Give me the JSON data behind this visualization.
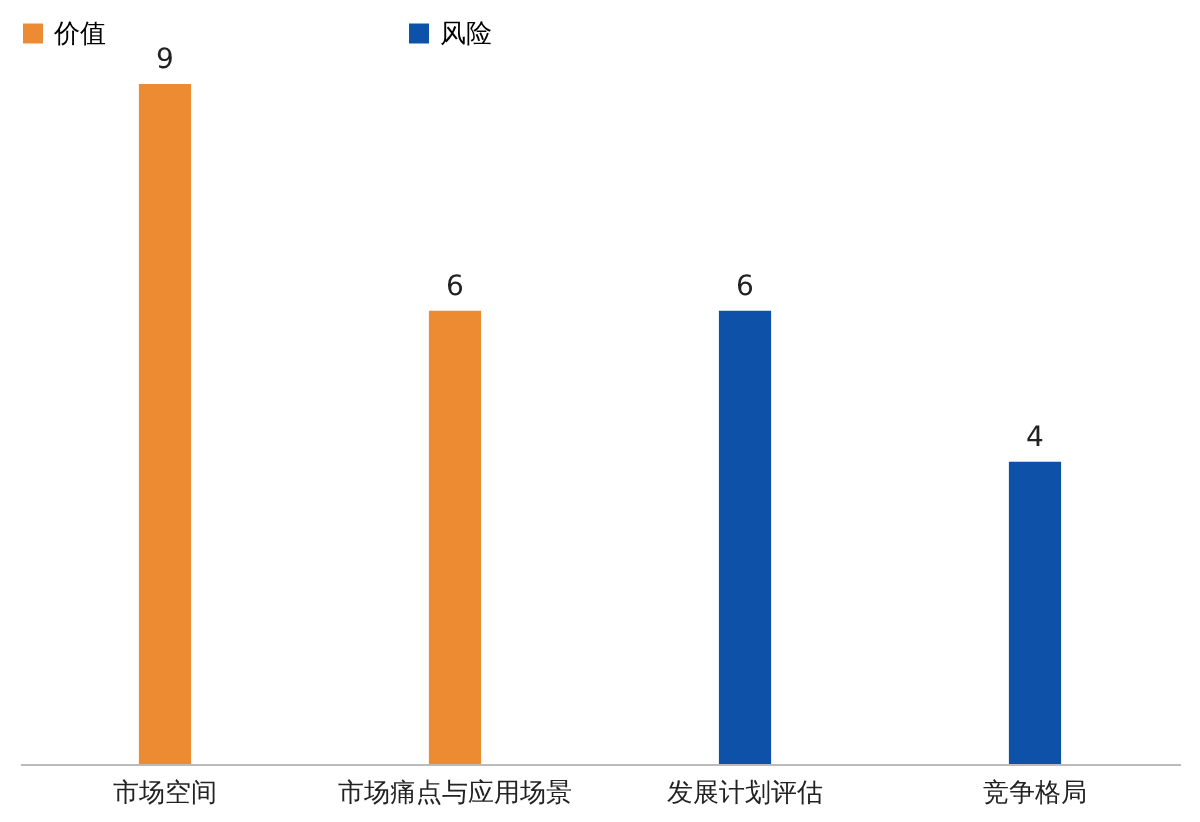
{
  "chart_data": {
    "type": "bar",
    "categories": [
      "市场空间",
      "市场痛点与应用场景",
      "发展计划评估",
      "竞争格局"
    ],
    "series": [
      {
        "name": "价值",
        "color": "#ed8b33",
        "values": [
          9,
          6,
          null,
          null
        ]
      },
      {
        "name": "风险",
        "color": "#0d52a8",
        "values": [
          null,
          null,
          6,
          4
        ]
      }
    ],
    "data_labels": true,
    "legend": "top"
  }
}
